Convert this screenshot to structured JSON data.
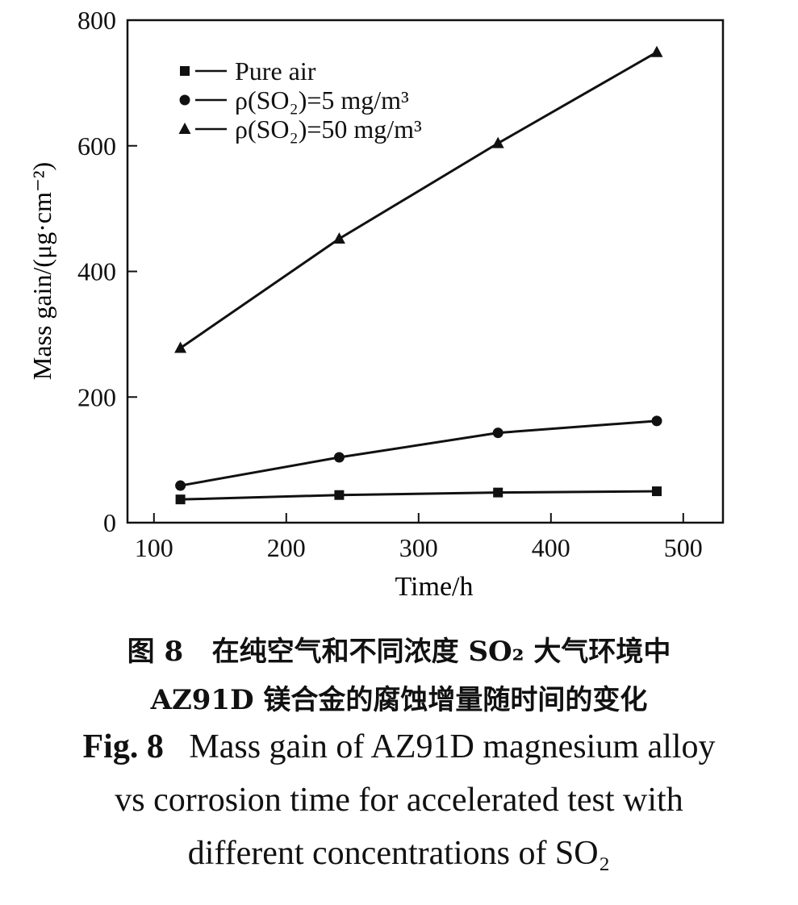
{
  "chart_data": {
    "type": "line",
    "xlabel": "Time/h",
    "ylabel": "Mass gain/(μg·cm⁻²)",
    "xlim": [
      80,
      530
    ],
    "ylim": [
      0,
      800
    ],
    "x_ticks": [
      100,
      200,
      300,
      400,
      500
    ],
    "y_ticks": [
      0,
      200,
      400,
      600,
      800
    ],
    "grid": false,
    "legend_position": "top-left",
    "x": [
      120,
      240,
      360,
      480
    ],
    "series": [
      {
        "name": "Pure air",
        "marker": "square",
        "values": [
          37,
          44,
          48,
          50
        ]
      },
      {
        "name": "ρ(SO₂)=5 mg/m³",
        "marker": "circle",
        "values": [
          59,
          104,
          143,
          162
        ]
      },
      {
        "name": "ρ(SO₂)=50 mg/m³",
        "marker": "triangle",
        "values": [
          278,
          452,
          604,
          749
        ]
      }
    ],
    "color": "#111111"
  },
  "caption": {
    "cn_line1_label": "图 8",
    "cn_line1_text": "在纯空气和不同浓度 SO₂ 大气环境中",
    "cn_line2": "AZ91D 镁合金的腐蚀增量随时间的变化",
    "en_label": "Fig. 8",
    "en_line1": "Mass gain of AZ91D magnesium alloy",
    "en_line2": "vs corrosion time for accelerated test with",
    "en_line3": "different concentrations of SO₂"
  }
}
